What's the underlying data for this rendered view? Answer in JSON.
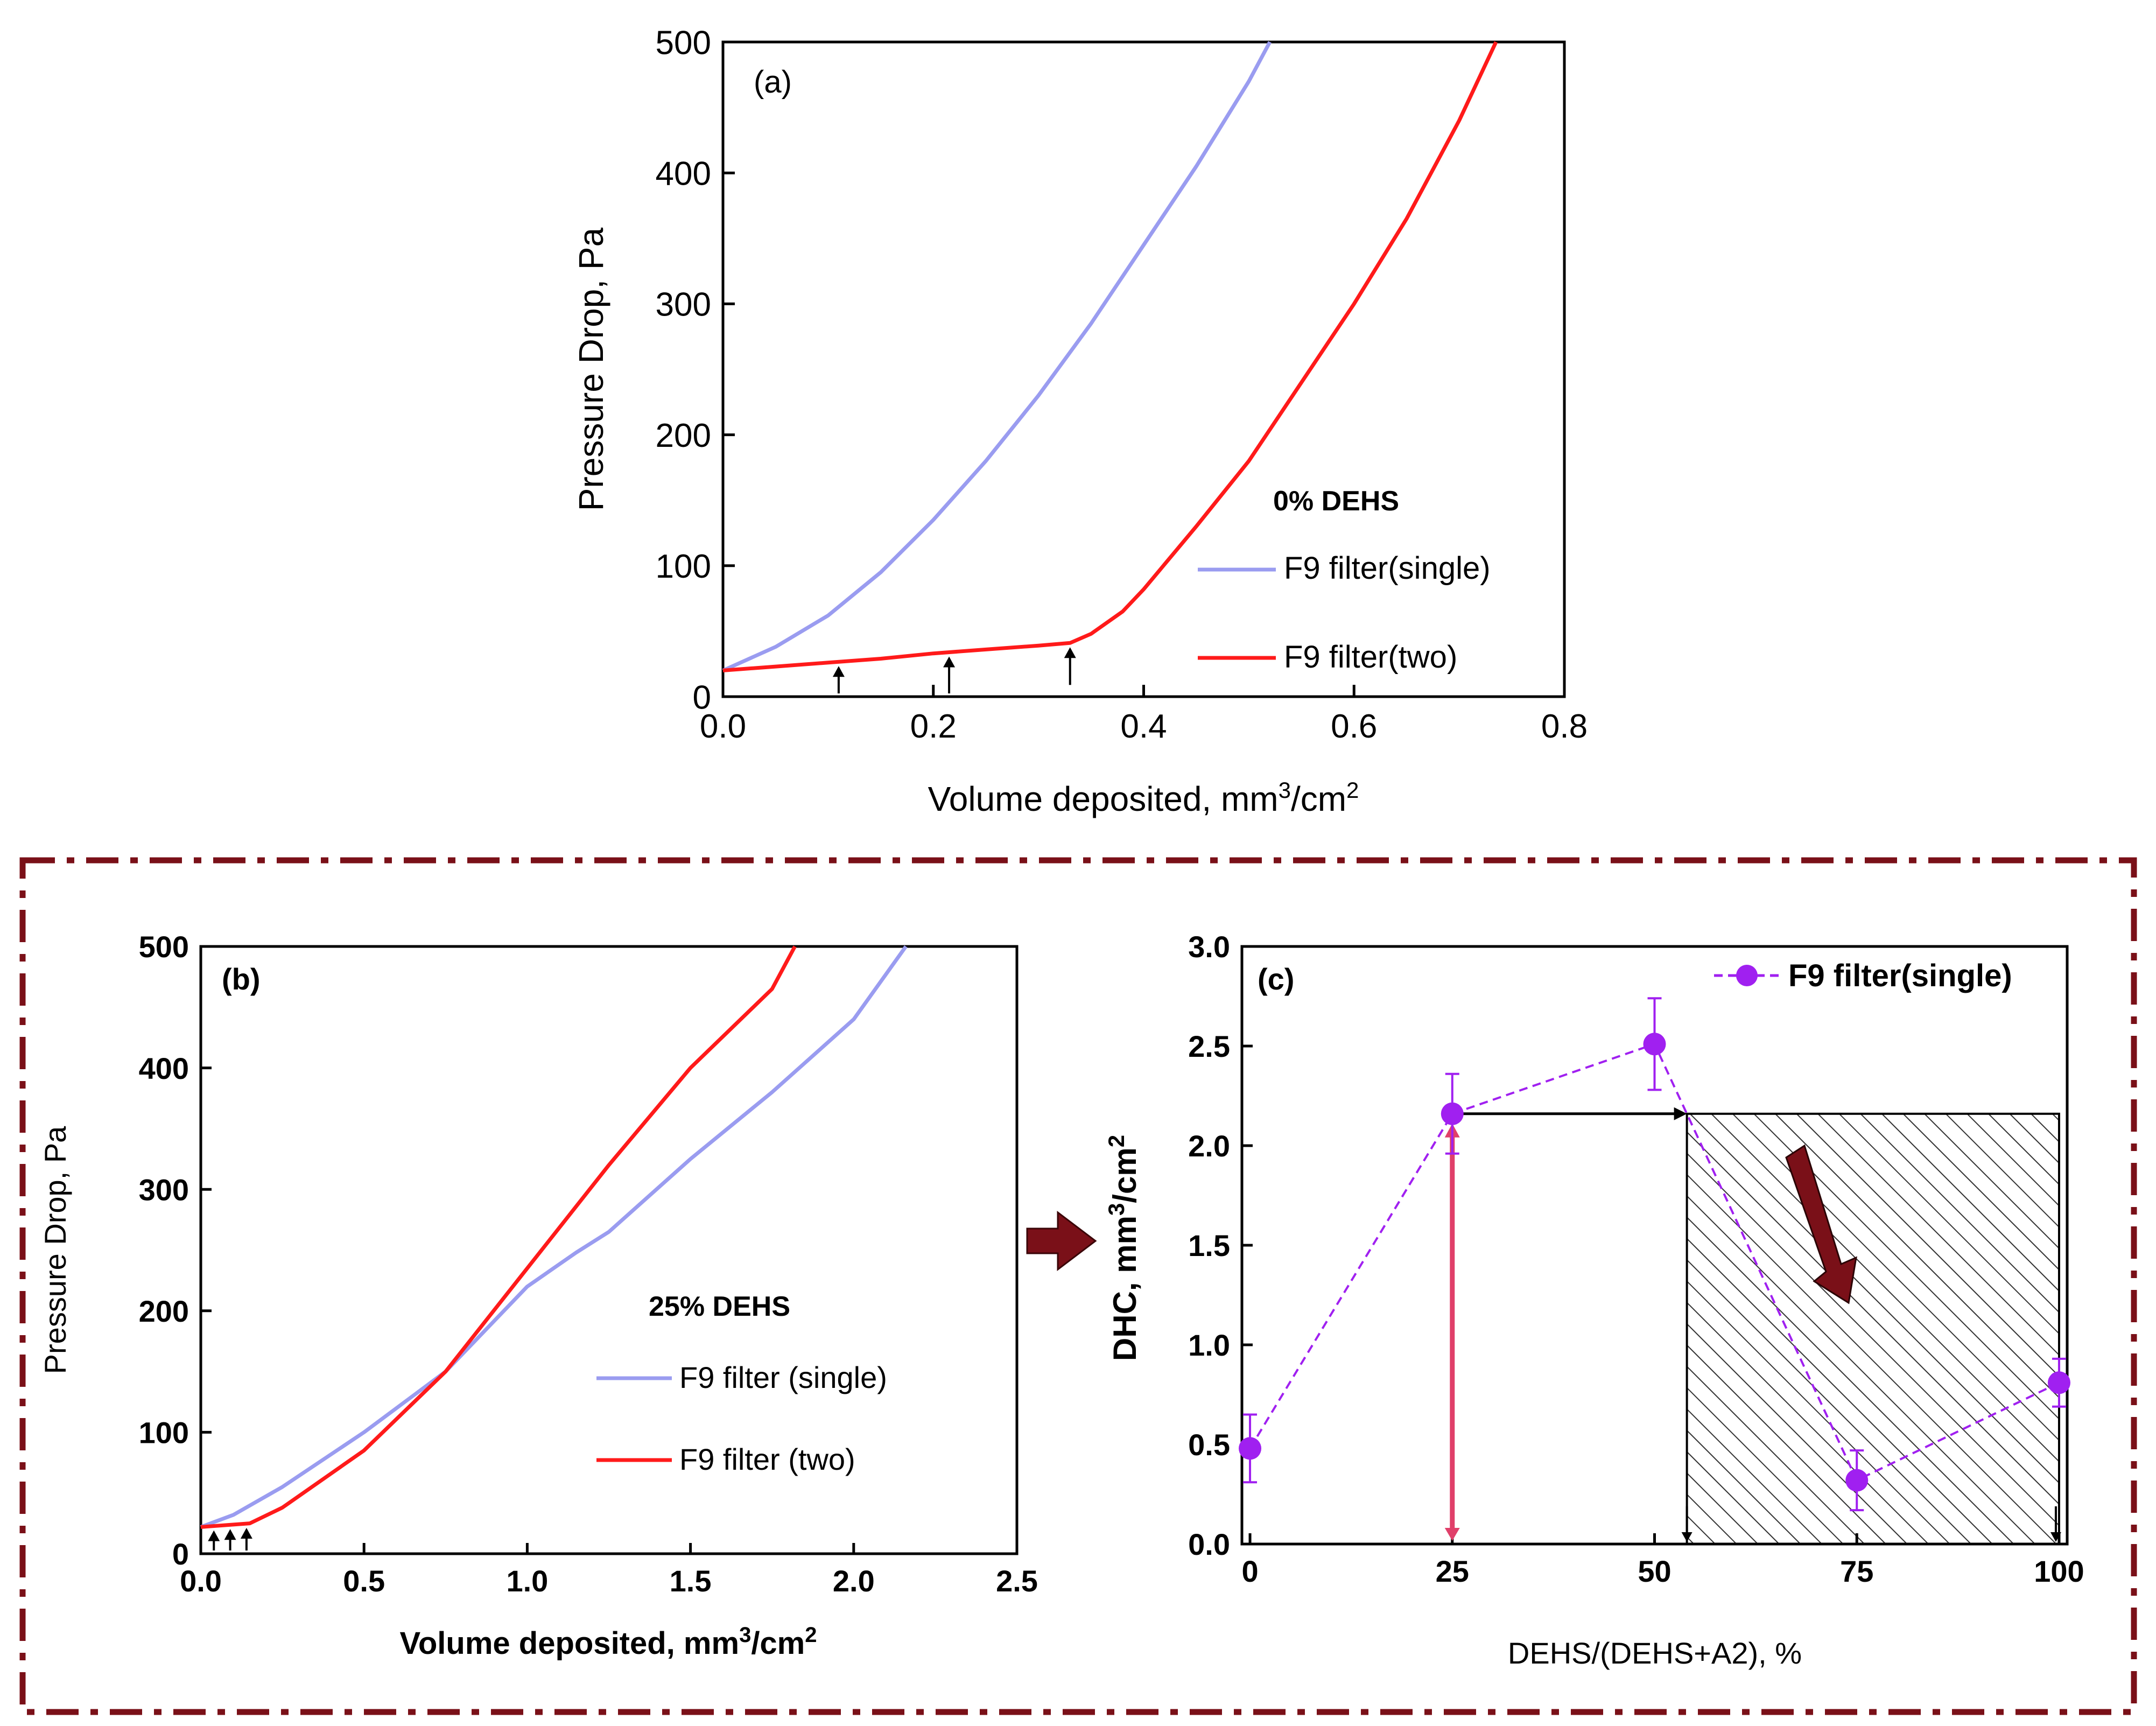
{
  "figure": {
    "colors": {
      "single": "#9a9cf0",
      "two": "#ff1a1a",
      "dhc": "#a020f0",
      "frame": "#7a1018",
      "bigArrow": "#7a1018",
      "pinkArrow": "#e0406a",
      "hatch": "#333333"
    },
    "connector_arrow": "right-arrow"
  },
  "chart_data": [
    {
      "id": "a",
      "type": "line",
      "panel_label": "(a)",
      "annotation": "0% DEHS",
      "xlabel": "Volume deposited, mm³/cm²",
      "xlabel_main": "Volume deposited, mm",
      "xlabel_unit1": "3",
      "xlabel_mid": "/cm",
      "xlabel_unit2": "2",
      "ylabel": "Pressure Drop, Pa",
      "xlim": [
        0,
        0.8
      ],
      "ylim": [
        0,
        500
      ],
      "xticks": [
        "0.0",
        "0.2",
        "0.4",
        "0.6",
        "0.8"
      ],
      "yticks": [
        "0",
        "100",
        "200",
        "300",
        "400",
        "500"
      ],
      "xtick_values": [
        0,
        0.2,
        0.4,
        0.6,
        0.8
      ],
      "ytick_values": [
        0,
        100,
        200,
        300,
        400,
        500
      ],
      "legend": [
        "F9 filter(single)",
        "F9 filter(two)"
      ],
      "series": [
        {
          "name": "F9 filter(single)",
          "color_key": "single",
          "x": [
            0,
            0.05,
            0.1,
            0.15,
            0.2,
            0.25,
            0.3,
            0.35,
            0.4,
            0.45,
            0.5,
            0.52
          ],
          "y": [
            20,
            38,
            62,
            95,
            135,
            180,
            230,
            285,
            345,
            405,
            470,
            500
          ]
        },
        {
          "name": "F9 filter(two)",
          "color_key": "two",
          "x": [
            0,
            0.05,
            0.1,
            0.15,
            0.2,
            0.25,
            0.3,
            0.33,
            0.35,
            0.38,
            0.4,
            0.45,
            0.5,
            0.55,
            0.6,
            0.65,
            0.7,
            0.735
          ],
          "y": [
            20,
            23,
            26,
            29,
            33,
            36,
            39,
            41,
            48,
            65,
            82,
            130,
            180,
            240,
            300,
            365,
            440,
            500
          ]
        }
      ],
      "arrows_x": [
        0.11,
        0.215,
        0.33
      ]
    },
    {
      "id": "b",
      "type": "line",
      "panel_label": "(b)",
      "annotation": "25% DEHS",
      "xlabel": "Volume deposited, mm³/cm²",
      "xlabel_main": "Volume deposited, mm",
      "xlabel_unit1": "3",
      "xlabel_mid": "/cm",
      "xlabel_unit2": "2",
      "ylabel": "Pressure Drop, Pa",
      "xlim": [
        0,
        2.5
      ],
      "ylim": [
        0,
        500
      ],
      "xticks": [
        "0.0",
        "0.5",
        "1.0",
        "1.5",
        "2.0",
        "2.5"
      ],
      "yticks": [
        "0",
        "100",
        "200",
        "300",
        "400",
        "500"
      ],
      "xtick_values": [
        0,
        0.5,
        1.0,
        1.5,
        2.0,
        2.5
      ],
      "ytick_values": [
        0,
        100,
        200,
        300,
        400,
        500
      ],
      "legend": [
        "F9 filter (single)",
        "F9 filter (two)"
      ],
      "series": [
        {
          "name": "F9 filter (single)",
          "color_key": "single",
          "x": [
            0,
            0.1,
            0.25,
            0.5,
            0.75,
            1.0,
            1.15,
            1.25,
            1.5,
            1.75,
            2.0,
            2.16
          ],
          "y": [
            22,
            32,
            55,
            100,
            150,
            220,
            248,
            265,
            325,
            380,
            440,
            500
          ]
        },
        {
          "name": "F9 filter (two)",
          "color_key": "two",
          "x": [
            0,
            0.15,
            0.25,
            0.5,
            0.75,
            1.0,
            1.25,
            1.5,
            1.75,
            1.82
          ],
          "y": [
            22,
            25,
            38,
            85,
            150,
            235,
            320,
            400,
            465,
            500
          ]
        }
      ],
      "arrows_x": [
        0.04,
        0.09,
        0.14
      ]
    },
    {
      "id": "c",
      "type": "scatter",
      "panel_label": "(c)",
      "xlabel": "DEHS/(DEHS+A2), %",
      "ylabel": "DHC, mm³/cm²",
      "ylabel_main": "DHC, mm",
      "ylabel_unit1": "3",
      "ylabel_mid": "/cm",
      "ylabel_unit2": "2",
      "xlim": [
        -1,
        101
      ],
      "ylim": [
        0,
        3.0
      ],
      "xticks": [
        "0",
        "25",
        "50",
        "75",
        "100"
      ],
      "yticks": [
        "0.0",
        "0.5",
        "1.0",
        "1.5",
        "2.0",
        "2.5",
        "3.0"
      ],
      "xtick_values": [
        0,
        25,
        50,
        75,
        100
      ],
      "ytick_values": [
        0,
        0.5,
        1.0,
        1.5,
        2.0,
        2.5,
        3.0
      ],
      "legend": [
        "F9 filter(single)"
      ],
      "series": [
        {
          "name": "F9 filter(single)",
          "color_key": "dhc",
          "x": [
            0,
            25,
            50,
            75,
            100
          ],
          "y": [
            0.48,
            2.16,
            2.51,
            0.32,
            0.81
          ],
          "err": [
            0.17,
            0.2,
            0.23,
            0.15,
            0.12
          ]
        }
      ],
      "shaded_region_x": [
        54,
        100
      ],
      "shaded_region_y": [
        0,
        2.16
      ],
      "horizontal_arrow_y": 2.16
    }
  ]
}
